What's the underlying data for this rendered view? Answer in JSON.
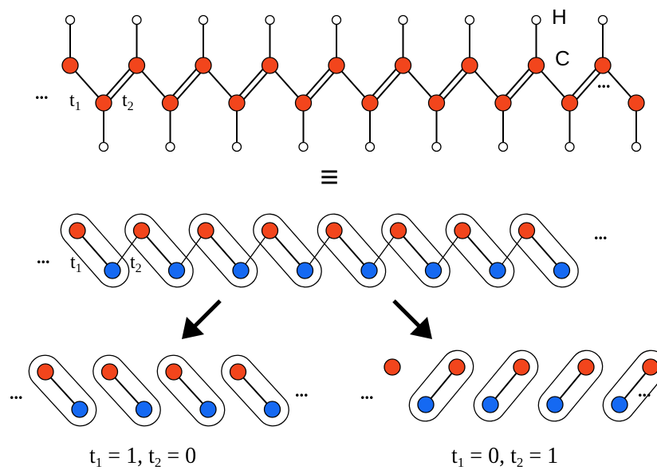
{
  "labels": {
    "hydrogen": "H",
    "carbon": "C",
    "ellipsis": "...",
    "equivalence": "≡",
    "t1": "t",
    "t1_sub": "1",
    "t2": "t",
    "t2_sub": "2"
  },
  "captions": {
    "left": {
      "t1_base": "t",
      "t1_sub": "1",
      "t1_rest": " = 1, ",
      "t2_base": "t",
      "t2_sub": "2",
      "t2_rest": " = 0"
    },
    "right": {
      "t1_base": "t",
      "t1_sub": "1",
      "t1_rest": " = 0, ",
      "t2_base": "t",
      "t2_sub": "2",
      "t2_rest": " = 1"
    }
  },
  "colors": {
    "carbon": "#f2451c",
    "blue_site": "#1569f2",
    "hydrogen": "#ffffff",
    "stroke": "#000000"
  }
}
